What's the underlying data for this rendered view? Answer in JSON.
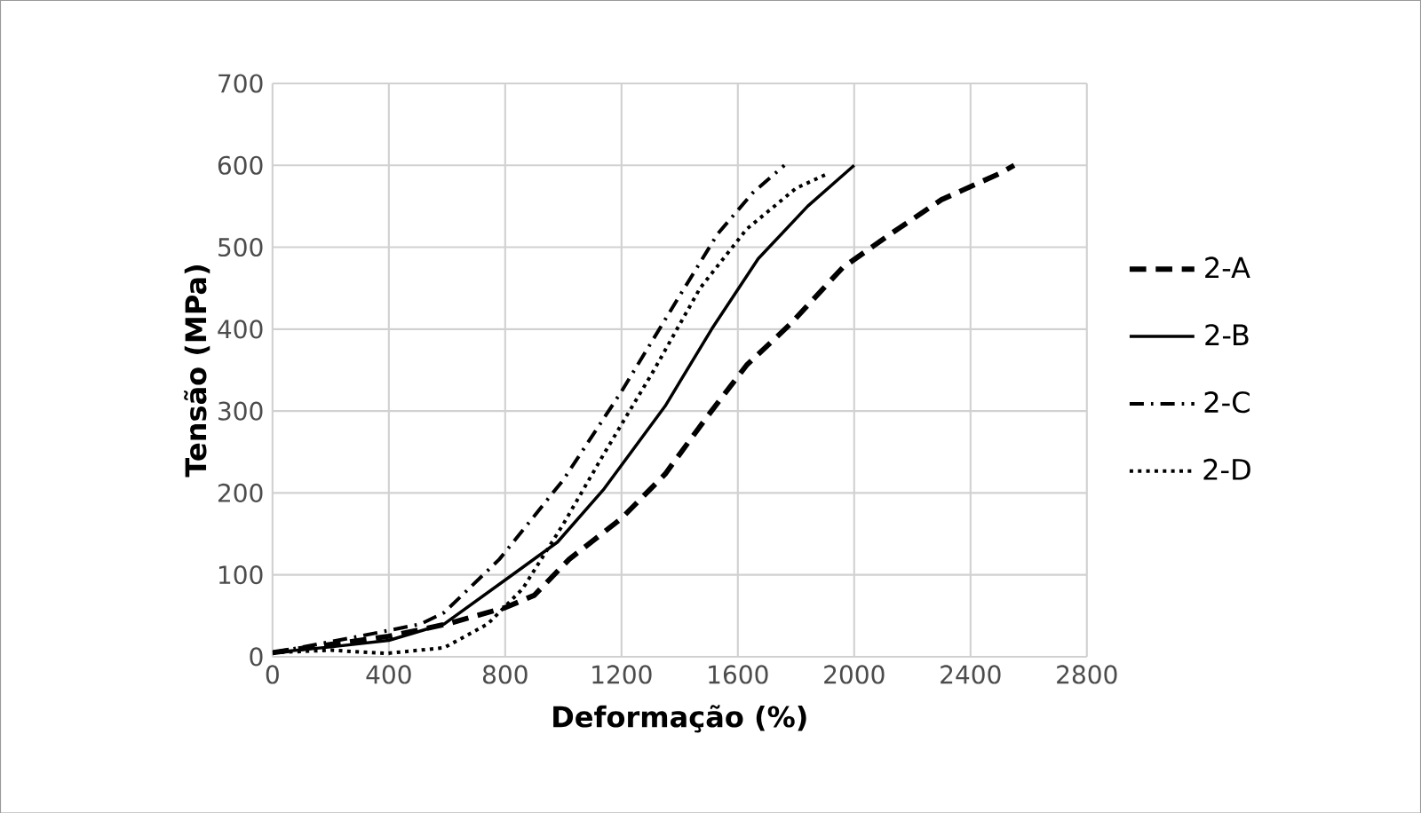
{
  "chart_data": {
    "type": "line",
    "xlabel": "Deformação (%)",
    "ylabel": "Tensão (MPa)",
    "xlim": [
      0,
      2800
    ],
    "xticks": [
      0,
      400,
      800,
      1200,
      1600,
      2000,
      2400,
      2800
    ],
    "ylim": [
      0,
      700
    ],
    "yticks": [
      0,
      100,
      200,
      300,
      400,
      500,
      600,
      700
    ],
    "grid": true,
    "legend": "right",
    "marker": "none",
    "series": [
      {
        "name": "2-A",
        "color": "#000000",
        "line_style": "dashed",
        "x": [
          0,
          200,
          400,
          600,
          800,
          900,
          1020,
          1200,
          1350,
          1490,
          1630,
          1780,
          1960,
          2120,
          2300,
          2500,
          2550
        ],
        "values": [
          5,
          15,
          25,
          40,
          60,
          75,
          119,
          169,
          223,
          291,
          356,
          406,
          475,
          515,
          558,
          590,
          600
        ]
      },
      {
        "name": "2-B",
        "color": "#000000",
        "line_style": "solid",
        "x": [
          0,
          200,
          400,
          590,
          840,
          980,
          1140,
          1350,
          1510,
          1670,
          1840,
          2000
        ],
        "values": [
          5,
          12,
          20,
          40,
          104,
          140,
          205,
          306,
          400,
          486,
          550,
          600
        ]
      },
      {
        "name": "2-C",
        "color": "#000000",
        "line_style": "dashdot",
        "x": [
          0,
          300,
          510,
          590,
          780,
          1000,
          1200,
          1390,
          1530,
          1650,
          1760
        ],
        "values": [
          5,
          25,
          40,
          54,
          119,
          216,
          324,
          435,
          516,
          566,
          600
        ]
      },
      {
        "name": "2-D",
        "color": "#000000",
        "line_style": "dotted",
        "x": [
          0,
          200,
          390,
          590,
          740,
          860,
          1000,
          1140,
          1310,
          1470,
          1630,
          1800,
          1910
        ],
        "values": [
          5,
          8,
          4,
          11,
          40,
          83,
          162,
          248,
          349,
          450,
          522,
          572,
          590
        ]
      }
    ]
  }
}
